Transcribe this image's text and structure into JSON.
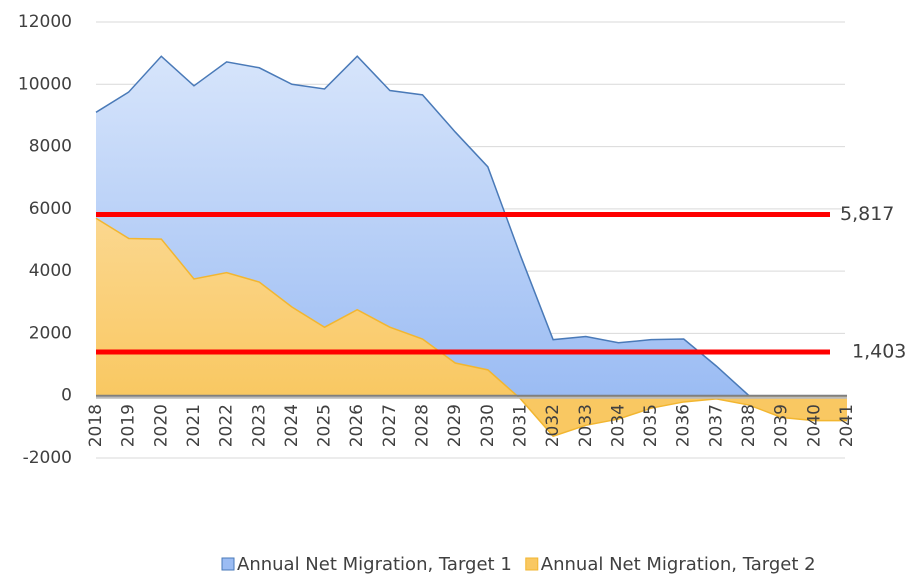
{
  "chart_data": {
    "type": "area",
    "categories": [
      "2018",
      "2019",
      "2020",
      "2021",
      "2022",
      "2023",
      "2024",
      "2025",
      "2026",
      "2027",
      "2028",
      "2029",
      "2030",
      "2031",
      "2032",
      "2033",
      "2034",
      "2035",
      "2036",
      "2037",
      "2038",
      "2039",
      "2040",
      "2041"
    ],
    "series": [
      {
        "name": "Annual Net Migration, Target 1",
        "color": "#4a7ab8",
        "fill_top": "#dde9fc",
        "fill_bottom": "#9bbcf3",
        "values": [
          9100,
          9750,
          10900,
          9950,
          10720,
          10530,
          10000,
          9850,
          10900,
          9800,
          9660,
          8470,
          7350,
          4500,
          1800,
          1900,
          1700,
          1800,
          1820,
          950,
          0,
          0,
          0,
          0
        ]
      },
      {
        "name": "Annual Net Migration, Target 2",
        "color": "#f2b630",
        "fill_top": "#fde8c0",
        "fill_bottom": "#f9c862",
        "values": [
          5700,
          5050,
          5030,
          3750,
          3950,
          3650,
          2850,
          2200,
          2760,
          2200,
          1820,
          1050,
          830,
          -100,
          -1300,
          -950,
          -750,
          -400,
          -200,
          -100,
          -300,
          -700,
          -800,
          -800
        ]
      }
    ],
    "reference_lines": [
      {
        "value": 5817,
        "label": "5,817",
        "color": "#ff0000"
      },
      {
        "value": 1403,
        "label": "1,403",
        "color": "#ff0000"
      }
    ],
    "ylim": [
      -2000,
      12000
    ],
    "yticks": [
      -2000,
      0,
      2000,
      4000,
      6000,
      8000,
      10000,
      12000
    ],
    "grid": true,
    "legend": "bottom"
  }
}
